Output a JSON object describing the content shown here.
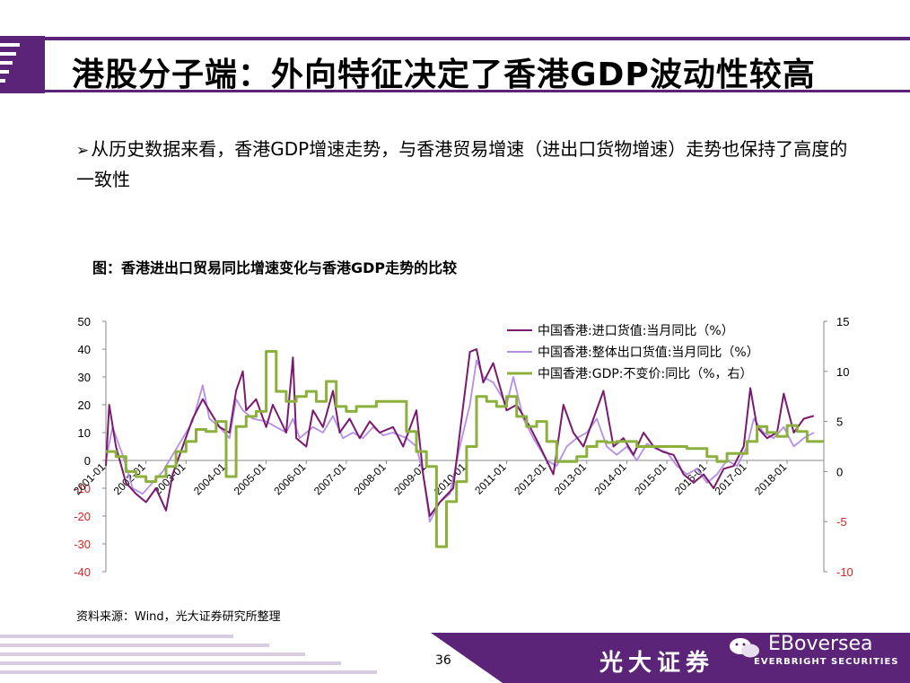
{
  "title": "港股分子端：外向特征决定了香港GDP波动性较高",
  "bullet": "从历史数据来看，香港GDP增速走势，与香港贸易增速（进出口货物增速）走势也保持了高度的一致性",
  "figure_title": "图：香港进出口贸易同比增速变化与香港GDP走势的比较",
  "source": "资料来源：Wind，光大证券研究所整理",
  "page_number": "36",
  "brand": {
    "cn": "光大证券",
    "en_small": "EVERBRIGHT SECURITIES",
    "wechat_name": "EBoversea"
  },
  "colors": {
    "purple": "#5b2479",
    "import_series": "#7a1a6e",
    "export_series": "#b58ee6",
    "gdp_series": "#8cb03c"
  },
  "chart_data": {
    "type": "line",
    "title": "香港进出口贸易同比增速变化与香港GDP走势的比较",
    "x_ticks": [
      "2001-01",
      "2002-01",
      "2003-01",
      "2004-01",
      "2005-01",
      "2006-01",
      "2007-01",
      "2008-01",
      "2009-01",
      "2010-01",
      "2011-01",
      "2012-01",
      "2013-01",
      "2014-01",
      "2015-01",
      "2016-01",
      "2017-01",
      "2018-01"
    ],
    "y_left": {
      "ticks": [
        "50",
        "40",
        "30",
        "20",
        "10",
        "0",
        "-10",
        "-20",
        "-30",
        "-40"
      ],
      "range": [
        -40,
        50
      ]
    },
    "y_right": {
      "ticks": [
        "15",
        "10",
        "5",
        "0",
        "-5",
        "-10"
      ],
      "range": [
        -10,
        15
      ]
    },
    "legend_position": "top-right",
    "series": [
      {
        "name": "中国香港:进口货值:当月同比（%）",
        "axis": "left",
        "color": "#7a1a6e",
        "points": [
          [
            "2001-01",
            -2
          ],
          [
            "2001-02",
            20
          ],
          [
            "2001-04",
            5
          ],
          [
            "2001-07",
            -8
          ],
          [
            "2001-10",
            -12
          ],
          [
            "2002-01",
            -15
          ],
          [
            "2002-04",
            -10
          ],
          [
            "2002-07",
            -18
          ],
          [
            "2002-09",
            -5
          ],
          [
            "2002-12",
            5
          ],
          [
            "2003-03",
            15
          ],
          [
            "2003-06",
            22
          ],
          [
            "2003-08",
            18
          ],
          [
            "2003-11",
            12
          ],
          [
            "2004-02",
            10
          ],
          [
            "2004-04",
            25
          ],
          [
            "2004-06",
            32
          ],
          [
            "2004-07",
            18
          ],
          [
            "2004-10",
            22
          ],
          [
            "2005-01",
            12
          ],
          [
            "2005-03",
            20
          ],
          [
            "2005-05",
            15
          ],
          [
            "2005-07",
            10
          ],
          [
            "2005-09",
            37
          ],
          [
            "2005-10",
            8
          ],
          [
            "2006-01",
            5
          ],
          [
            "2006-03",
            18
          ],
          [
            "2006-06",
            12
          ],
          [
            "2006-09",
            25
          ],
          [
            "2006-11",
            10
          ],
          [
            "2007-02",
            15
          ],
          [
            "2007-05",
            8
          ],
          [
            "2007-08",
            14
          ],
          [
            "2007-11",
            10
          ],
          [
            "2008-03",
            12
          ],
          [
            "2008-06",
            5
          ],
          [
            "2008-10",
            18
          ],
          [
            "2008-12",
            -5
          ],
          [
            "2009-02",
            -20
          ],
          [
            "2009-05",
            -15
          ],
          [
            "2009-09",
            -10
          ],
          [
            "2009-11",
            10
          ],
          [
            "2010-02",
            39
          ],
          [
            "2010-04",
            40
          ],
          [
            "2010-06",
            28
          ],
          [
            "2010-09",
            35
          ],
          [
            "2011-01",
            18
          ],
          [
            "2011-04",
            20
          ],
          [
            "2011-08",
            12
          ],
          [
            "2011-11",
            5
          ],
          [
            "2012-03",
            -5
          ],
          [
            "2012-06",
            20
          ],
          [
            "2012-09",
            10
          ],
          [
            "2012-12",
            5
          ],
          [
            "2013-03",
            15
          ],
          [
            "2013-06",
            25
          ],
          [
            "2013-09",
            5
          ],
          [
            "2013-12",
            8
          ],
          [
            "2014-03",
            2
          ],
          [
            "2014-06",
            10
          ],
          [
            "2014-09",
            5
          ],
          [
            "2014-12",
            3
          ],
          [
            "2015-03",
            2
          ],
          [
            "2015-06",
            -5
          ],
          [
            "2015-09",
            -8
          ],
          [
            "2015-12",
            -5
          ],
          [
            "2016-03",
            -10
          ],
          [
            "2016-06",
            -3
          ],
          [
            "2016-09",
            -2
          ],
          [
            "2016-12",
            5
          ],
          [
            "2017-02",
            26
          ],
          [
            "2017-04",
            12
          ],
          [
            "2017-07",
            8
          ],
          [
            "2017-10",
            10
          ],
          [
            "2017-12",
            24
          ],
          [
            "2018-03",
            10
          ],
          [
            "2018-06",
            15
          ],
          [
            "2018-09",
            16
          ]
        ]
      },
      {
        "name": "中国香港:整体出口货值:当月同比（%）",
        "axis": "left",
        "color": "#b58ee6",
        "points": [
          [
            "2001-01",
            0
          ],
          [
            "2001-03",
            12
          ],
          [
            "2001-06",
            2
          ],
          [
            "2001-09",
            -10
          ],
          [
            "2001-12",
            -12
          ],
          [
            "2002-03",
            -8
          ],
          [
            "2002-06",
            -4
          ],
          [
            "2002-09",
            2
          ],
          [
            "2002-12",
            8
          ],
          [
            "2003-03",
            14
          ],
          [
            "2003-06",
            27
          ],
          [
            "2003-08",
            15
          ],
          [
            "2003-11",
            12
          ],
          [
            "2004-02",
            8
          ],
          [
            "2004-04",
            22
          ],
          [
            "2004-06",
            18
          ],
          [
            "2004-09",
            15
          ],
          [
            "2005-01",
            14
          ],
          [
            "2005-04",
            12
          ],
          [
            "2005-07",
            10
          ],
          [
            "2005-09",
            15
          ],
          [
            "2005-11",
            8
          ],
          [
            "2006-03",
            12
          ],
          [
            "2006-06",
            10
          ],
          [
            "2006-09",
            16
          ],
          [
            "2006-12",
            8
          ],
          [
            "2007-03",
            10
          ],
          [
            "2007-06",
            8
          ],
          [
            "2007-09",
            12
          ],
          [
            "2007-12",
            9
          ],
          [
            "2008-03",
            10
          ],
          [
            "2008-07",
            8
          ],
          [
            "2008-10",
            5
          ],
          [
            "2008-12",
            -5
          ],
          [
            "2009-02",
            -22
          ],
          [
            "2009-05",
            -15
          ],
          [
            "2009-08",
            -12
          ],
          [
            "2009-11",
            5
          ],
          [
            "2010-02",
            20
          ],
          [
            "2010-04",
            36
          ],
          [
            "2010-06",
            30
          ],
          [
            "2010-09",
            28
          ],
          [
            "2011-01",
            20
          ],
          [
            "2011-03",
            30
          ],
          [
            "2011-06",
            15
          ],
          [
            "2011-09",
            8
          ],
          [
            "2012-01",
            0
          ],
          [
            "2012-04",
            -2
          ],
          [
            "2012-07",
            5
          ],
          [
            "2012-10",
            8
          ],
          [
            "2013-01",
            10
          ],
          [
            "2013-04",
            15
          ],
          [
            "2013-07",
            5
          ],
          [
            "2013-10",
            2
          ],
          [
            "2014-01",
            5
          ],
          [
            "2014-04",
            0
          ],
          [
            "2014-07",
            6
          ],
          [
            "2014-10",
            4
          ],
          [
            "2015-01",
            3
          ],
          [
            "2015-04",
            -2
          ],
          [
            "2015-07",
            -5
          ],
          [
            "2015-10",
            -3
          ],
          [
            "2016-01",
            -8
          ],
          [
            "2016-04",
            -5
          ],
          [
            "2016-07",
            0
          ],
          [
            "2016-10",
            -2
          ],
          [
            "2017-01",
            5
          ],
          [
            "2017-03",
            15
          ],
          [
            "2017-06",
            10
          ],
          [
            "2017-09",
            8
          ],
          [
            "2017-12",
            12
          ],
          [
            "2018-03",
            5
          ],
          [
            "2018-06",
            8
          ],
          [
            "2018-09",
            10
          ]
        ]
      },
      {
        "name": "中国香港:GDP:不变价:同比（%，右）",
        "axis": "right",
        "color": "#8cb03c",
        "points": [
          [
            "2001-01",
            2
          ],
          [
            "2001-04",
            1.5
          ],
          [
            "2001-07",
            0
          ],
          [
            "2001-10",
            -0.5
          ],
          [
            "2002-01",
            -1
          ],
          [
            "2002-04",
            -0.5
          ],
          [
            "2002-07",
            0.5
          ],
          [
            "2002-10",
            2
          ],
          [
            "2003-01",
            3
          ],
          [
            "2003-04",
            4.2
          ],
          [
            "2003-07",
            4
          ],
          [
            "2003-10",
            5
          ],
          [
            "2004-01",
            -0.5
          ],
          [
            "2004-04",
            4.5
          ],
          [
            "2004-07",
            5.5
          ],
          [
            "2004-10",
            6
          ],
          [
            "2005-01",
            12
          ],
          [
            "2005-04",
            8
          ],
          [
            "2005-07",
            7
          ],
          [
            "2005-10",
            7.5
          ],
          [
            "2006-01",
            8
          ],
          [
            "2006-04",
            7
          ],
          [
            "2006-07",
            9
          ],
          [
            "2006-10",
            6.5
          ],
          [
            "2007-01",
            6
          ],
          [
            "2007-04",
            6.5
          ],
          [
            "2007-07",
            6.5
          ],
          [
            "2007-10",
            7
          ],
          [
            "2008-01",
            7
          ],
          [
            "2008-04",
            7
          ],
          [
            "2008-07",
            4
          ],
          [
            "2008-10",
            2
          ],
          [
            "2009-01",
            0.5
          ],
          [
            "2009-04",
            -7.5
          ],
          [
            "2009-07",
            -3
          ],
          [
            "2009-10",
            -1
          ],
          [
            "2010-01",
            2.5
          ],
          [
            "2010-04",
            7.5
          ],
          [
            "2010-07",
            7
          ],
          [
            "2010-10",
            6.5
          ],
          [
            "2011-01",
            7.5
          ],
          [
            "2011-04",
            5.5
          ],
          [
            "2011-07",
            4.5
          ],
          [
            "2011-10",
            5
          ],
          [
            "2012-01",
            3
          ],
          [
            "2012-04",
            1
          ],
          [
            "2012-07",
            1
          ],
          [
            "2012-10",
            1.5
          ],
          [
            "2013-01",
            2.5
          ],
          [
            "2013-04",
            3
          ],
          [
            "2013-07",
            2.9
          ],
          [
            "2013-10",
            3
          ],
          [
            "2014-01",
            3
          ],
          [
            "2014-04",
            2.5
          ],
          [
            "2014-07",
            2.5
          ],
          [
            "2014-10",
            2.5
          ],
          [
            "2015-01",
            2.5
          ],
          [
            "2015-04",
            2.5
          ],
          [
            "2015-07",
            2.3
          ],
          [
            "2015-10",
            2.3
          ],
          [
            "2016-01",
            1.5
          ],
          [
            "2016-04",
            1
          ],
          [
            "2016-07",
            1.8
          ],
          [
            "2016-10",
            1.8
          ],
          [
            "2017-01",
            3
          ],
          [
            "2017-04",
            4.5
          ],
          [
            "2017-07",
            3.9
          ],
          [
            "2017-10",
            3.5
          ],
          [
            "2018-01",
            4.6
          ],
          [
            "2018-04",
            4
          ],
          [
            "2018-07",
            3
          ],
          [
            "2018-10",
            3
          ]
        ]
      }
    ]
  }
}
